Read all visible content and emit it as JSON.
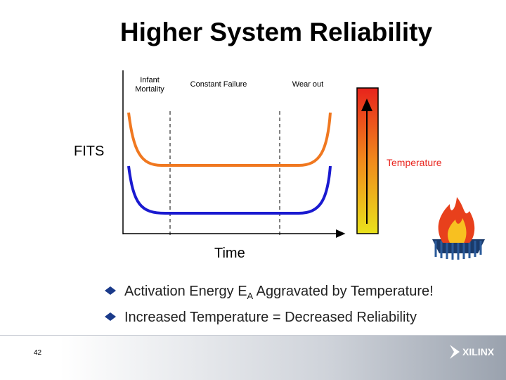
{
  "title": "Higher System Reliability",
  "phases": [
    {
      "lines": [
        "Infant",
        "Mortality"
      ]
    },
    {
      "lines": [
        "Constant Failure"
      ]
    },
    {
      "lines": [
        "Wear out"
      ]
    }
  ],
  "y_label": "FITS",
  "x_label": "Time",
  "temperature_label": "Temperature",
  "bullets": [
    {
      "before": "Activation Energy E",
      "sub": "A",
      "after": " Aggravated by Temperature!"
    },
    {
      "before": "Increased Temperature = Decreased Reliability"
    }
  ],
  "page_number": "42",
  "logo": "XILINX"
}
